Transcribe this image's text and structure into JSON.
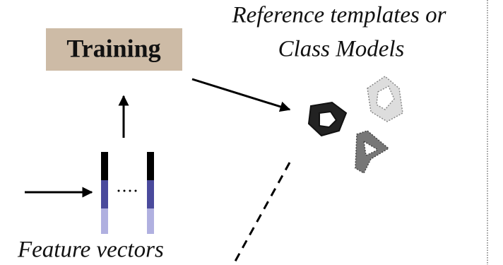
{
  "training": {
    "label": "Training"
  },
  "reference": {
    "lines": [
      "Reference templates or",
      "Class Models"
    ]
  },
  "features": {
    "label": "Feature vectors"
  }
}
